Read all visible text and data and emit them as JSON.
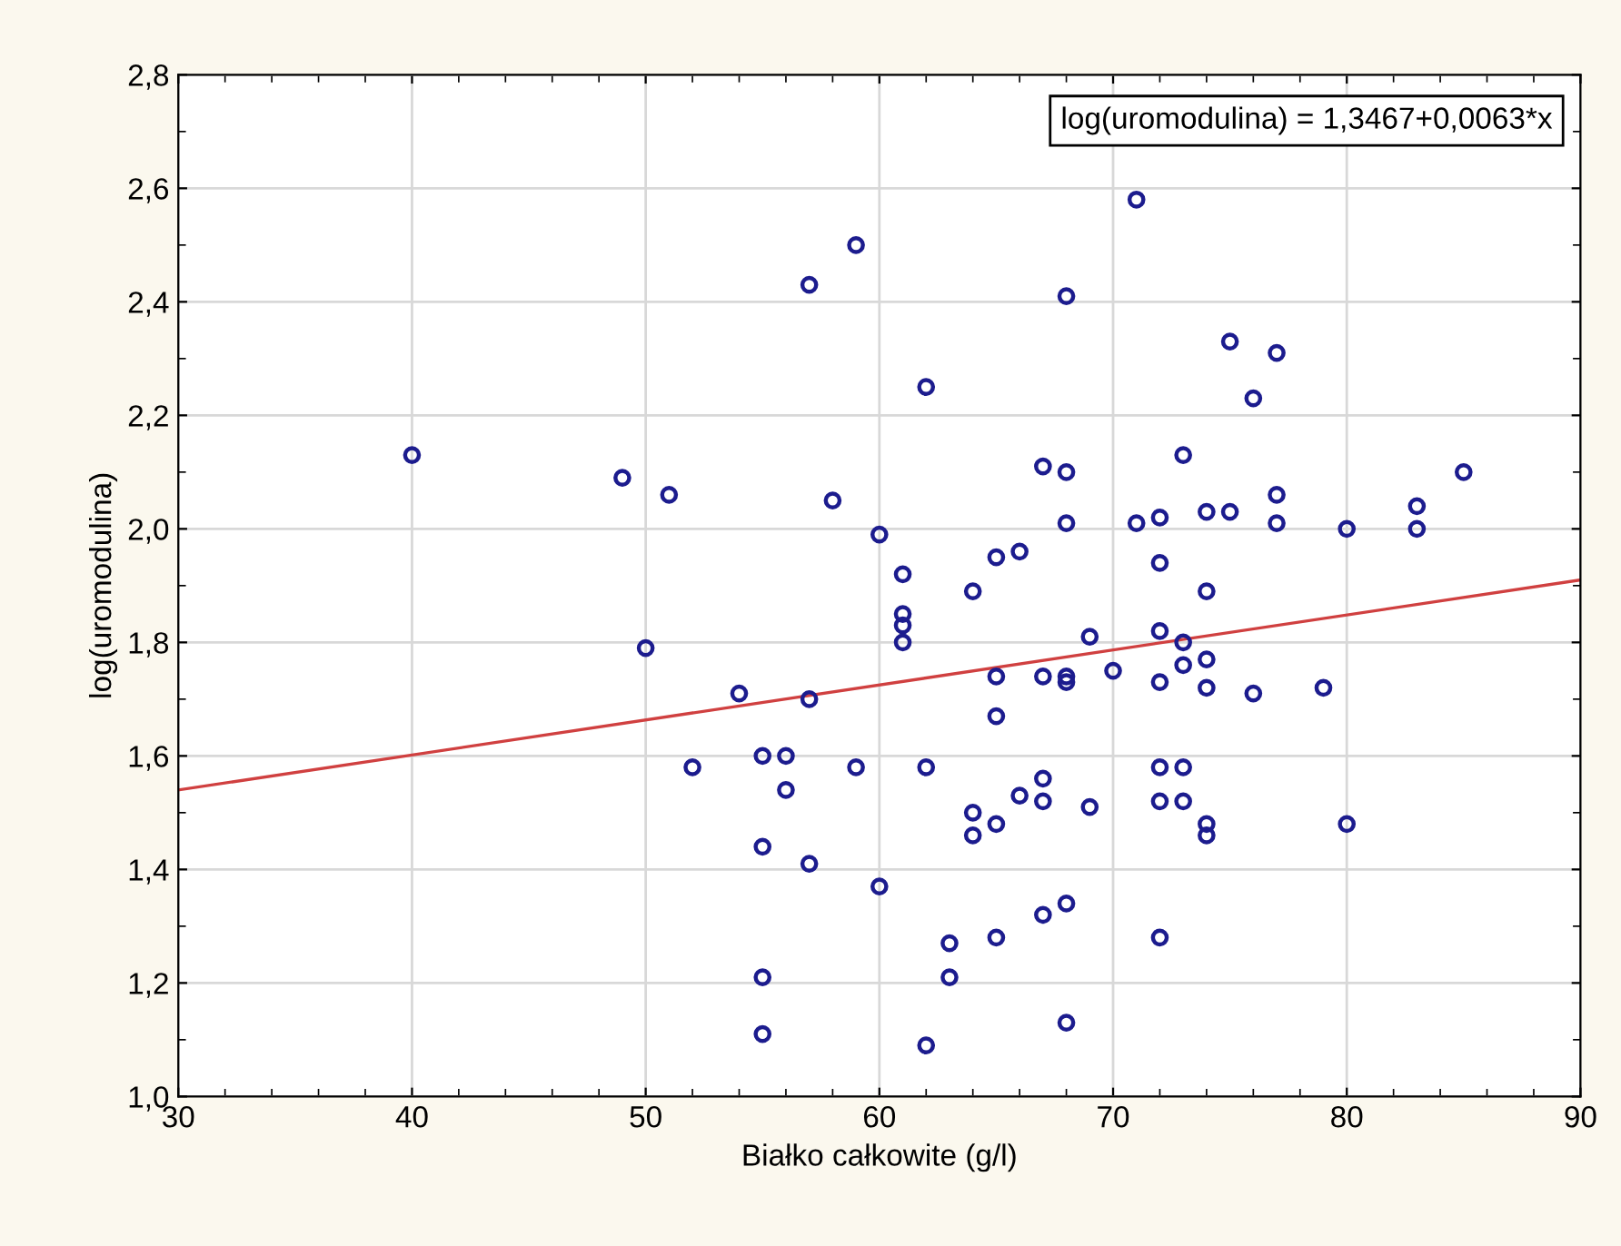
{
  "chart_data": {
    "type": "scatter",
    "xlabel": "Białko całkowite (g/l)",
    "ylabel": "log(uromodulina)",
    "xlim": [
      30,
      90
    ],
    "xticks": [
      30,
      40,
      50,
      60,
      70,
      80,
      90
    ],
    "ylim": [
      1.0,
      2.8
    ],
    "yticks": [
      {
        "value": 1.0,
        "label": "1,0"
      },
      {
        "value": 1.2,
        "label": "1,2"
      },
      {
        "value": 1.4,
        "label": "1,4"
      },
      {
        "value": 1.6,
        "label": "1,6"
      },
      {
        "value": 1.8,
        "label": "1,8"
      },
      {
        "value": 2.0,
        "label": "2,0"
      },
      {
        "value": 2.2,
        "label": "2,2"
      },
      {
        "value": 2.4,
        "label": "2,4"
      },
      {
        "value": 2.6,
        "label": "2,6"
      },
      {
        "value": 2.8,
        "label": "2,8"
      }
    ],
    "grid": true,
    "legend": false,
    "annotations": [
      "log(uromodulina) = 1,3467+0,0063*x"
    ],
    "series": [
      {
        "marker": "circle",
        "color": "#1c1c8e",
        "x": [
          40,
          49,
          51,
          50,
          54,
          52,
          55,
          56,
          56,
          55,
          55,
          55,
          57,
          59,
          58,
          57,
          57,
          59,
          60,
          60,
          61,
          61,
          61,
          61,
          62,
          62,
          62,
          63,
          63,
          64,
          64,
          64,
          65,
          65,
          65,
          65,
          65,
          66,
          66,
          67,
          67,
          67,
          67,
          67,
          68,
          68,
          68,
          68,
          68,
          68,
          68,
          69,
          69,
          70,
          71,
          71,
          72,
          72,
          72,
          72,
          72,
          72,
          72,
          73,
          73,
          73,
          73,
          73,
          74,
          74,
          74,
          74,
          74,
          74,
          75,
          75,
          76,
          76,
          77,
          77,
          77,
          79,
          80,
          80,
          83,
          83,
          85
        ],
        "values": [
          2.13,
          2.09,
          2.06,
          1.79,
          1.71,
          1.58,
          1.6,
          1.6,
          1.54,
          1.44,
          1.21,
          1.11,
          2.43,
          2.5,
          2.05,
          1.7,
          1.41,
          1.58,
          1.99,
          1.37,
          1.92,
          1.85,
          1.83,
          1.8,
          2.25,
          1.58,
          1.09,
          1.27,
          1.21,
          1.89,
          1.5,
          1.46,
          1.95,
          1.74,
          1.67,
          1.48,
          1.28,
          1.96,
          1.53,
          2.11,
          1.74,
          1.56,
          1.52,
          1.32,
          2.41,
          2.1,
          2.01,
          1.74,
          1.73,
          1.34,
          1.13,
          1.81,
          1.51,
          1.75,
          2.58,
          2.01,
          2.02,
          1.94,
          1.82,
          1.73,
          1.58,
          1.52,
          1.28,
          2.13,
          1.8,
          1.76,
          1.58,
          1.52,
          2.03,
          1.89,
          1.77,
          1.72,
          1.48,
          1.46,
          2.33,
          2.03,
          2.23,
          1.71,
          2.31,
          2.06,
          2.01,
          1.72,
          2.0,
          1.48,
          2.04,
          2.0,
          2.1
        ]
      },
      {
        "type": "line",
        "marker": "none",
        "color": "#d04040",
        "x": [
          30,
          90
        ],
        "values": [
          1.54,
          1.91
        ]
      }
    ]
  }
}
